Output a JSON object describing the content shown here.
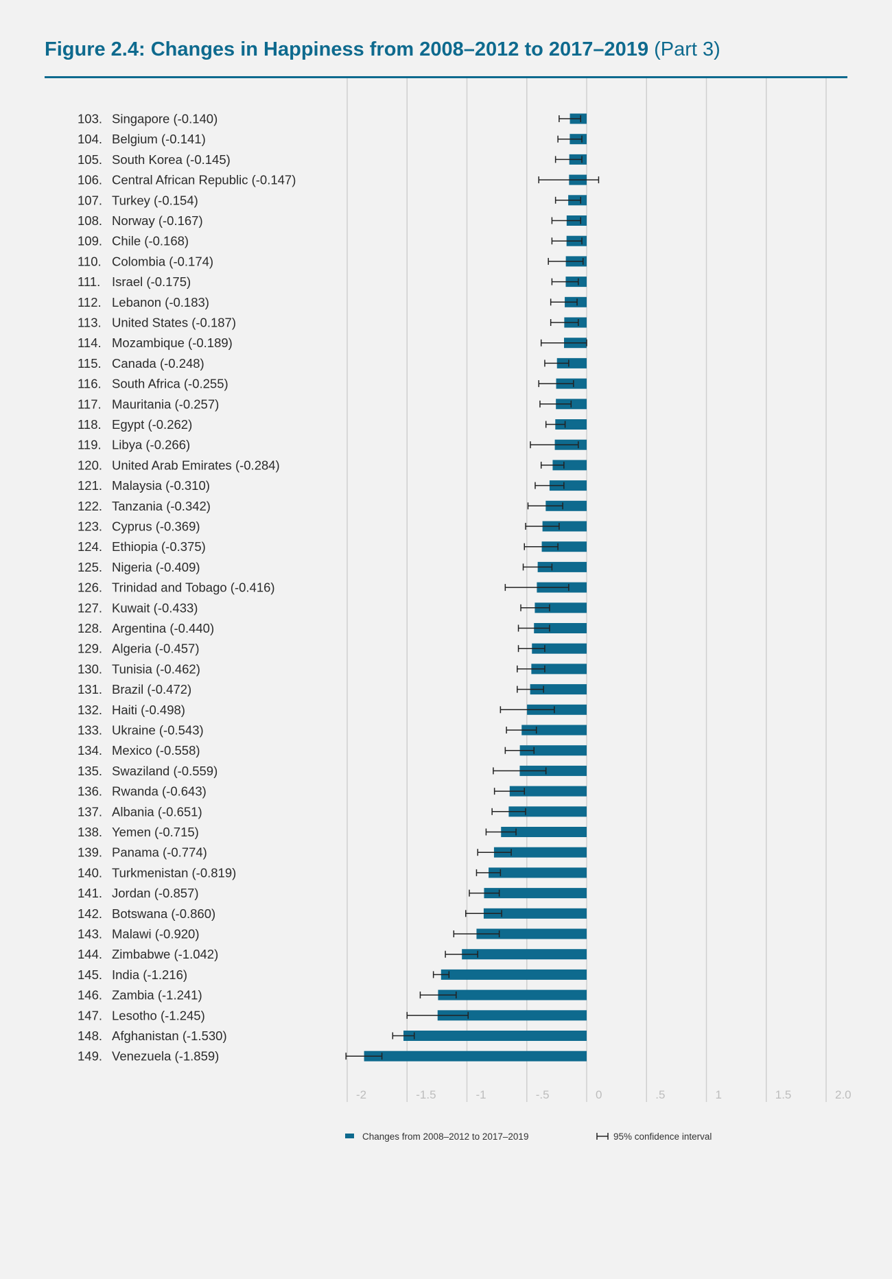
{
  "title": {
    "main": "Figure 2.4: Changes in Happiness from 2008–2012 to 2017–2019",
    "part": "(Part 3)"
  },
  "colors": {
    "accent": "#0e6a8e",
    "bar": "#0e6a8e",
    "grid": "#cfcfcf",
    "error": "#222222"
  },
  "chart_data": {
    "type": "bar",
    "orientation": "horizontal",
    "title": "Figure 2.4: Changes in Happiness from 2008–2012 to 2017–2019 (Part 3)",
    "xlabel": "",
    "ylabel": "",
    "xlim": [
      -2,
      2
    ],
    "grid": true,
    "x_ticks": [
      {
        "v": -2,
        "label": "-2"
      },
      {
        "v": -1.5,
        "label": "-1.5"
      },
      {
        "v": -1,
        "label": "-1"
      },
      {
        "v": -0.5,
        "label": "-.5"
      },
      {
        "v": 0,
        "label": "0"
      },
      {
        "v": 0.5,
        "label": ".5"
      },
      {
        "v": 1,
        "label": "1"
      },
      {
        "v": 1.5,
        "label": "1.5"
      },
      {
        "v": 2,
        "label": "2.0"
      }
    ],
    "legend": {
      "position": "bottom",
      "bar_label": "Changes from 2008–2012 to 2017–2019",
      "ci_label": "95% confidence interval"
    },
    "rows": [
      {
        "rank": "103.",
        "label": "Singapore (-0.140)",
        "value": -0.14,
        "ci": [
          -0.23,
          -0.05
        ]
      },
      {
        "rank": "104.",
        "label": "Belgium (-0.141)",
        "value": -0.141,
        "ci": [
          -0.24,
          -0.04
        ]
      },
      {
        "rank": "105.",
        "label": "South Korea (-0.145)",
        "value": -0.145,
        "ci": [
          -0.26,
          -0.04
        ]
      },
      {
        "rank": "106.",
        "label": "Central African Republic (-0.147)",
        "value": -0.147,
        "ci": [
          -0.4,
          0.1
        ]
      },
      {
        "rank": "107.",
        "label": "Turkey (-0.154)",
        "value": -0.154,
        "ci": [
          -0.26,
          -0.05
        ]
      },
      {
        "rank": "108.",
        "label": "Norway (-0.167)",
        "value": -0.167,
        "ci": [
          -0.29,
          -0.05
        ]
      },
      {
        "rank": "109.",
        "label": "Chile (-0.168)",
        "value": -0.168,
        "ci": [
          -0.29,
          -0.04
        ]
      },
      {
        "rank": "110.",
        "label": "Colombia (-0.174)",
        "value": -0.174,
        "ci": [
          -0.32,
          -0.03
        ]
      },
      {
        "rank": "111.",
        "label": "Israel (-0.175)",
        "value": -0.175,
        "ci": [
          -0.29,
          -0.07
        ]
      },
      {
        "rank": "112.",
        "label": "Lebanon (-0.183)",
        "value": -0.183,
        "ci": [
          -0.3,
          -0.08
        ]
      },
      {
        "rank": "113.",
        "label": "United States (-0.187)",
        "value": -0.187,
        "ci": [
          -0.3,
          -0.07
        ]
      },
      {
        "rank": "114.",
        "label": "Mozambique (-0.189)",
        "value": -0.189,
        "ci": [
          -0.38,
          0.0
        ]
      },
      {
        "rank": "115.",
        "label": "Canada (-0.248)",
        "value": -0.248,
        "ci": [
          -0.35,
          -0.15
        ]
      },
      {
        "rank": "116.",
        "label": "South Africa (-0.255)",
        "value": -0.255,
        "ci": [
          -0.4,
          -0.11
        ]
      },
      {
        "rank": "117.",
        "label": "Mauritania (-0.257)",
        "value": -0.257,
        "ci": [
          -0.39,
          -0.13
        ]
      },
      {
        "rank": "118.",
        "label": "Egypt (-0.262)",
        "value": -0.262,
        "ci": [
          -0.34,
          -0.18
        ]
      },
      {
        "rank": "119.",
        "label": "Libya (-0.266)",
        "value": -0.266,
        "ci": [
          -0.47,
          -0.07
        ]
      },
      {
        "rank": "120.",
        "label": "United Arab Emirates (-0.284)",
        "value": -0.284,
        "ci": [
          -0.38,
          -0.19
        ]
      },
      {
        "rank": "121.",
        "label": "Malaysia (-0.310)",
        "value": -0.31,
        "ci": [
          -0.43,
          -0.19
        ]
      },
      {
        "rank": "122.",
        "label": "Tanzania (-0.342)",
        "value": -0.342,
        "ci": [
          -0.49,
          -0.2
        ]
      },
      {
        "rank": "123.",
        "label": "Cyprus (-0.369)",
        "value": -0.369,
        "ci": [
          -0.51,
          -0.23
        ]
      },
      {
        "rank": "124.",
        "label": "Ethiopia (-0.375)",
        "value": -0.375,
        "ci": [
          -0.52,
          -0.24
        ]
      },
      {
        "rank": "125.",
        "label": "Nigeria (-0.409)",
        "value": -0.409,
        "ci": [
          -0.53,
          -0.29
        ]
      },
      {
        "rank": "126.",
        "label": "Trinidad and Tobago (-0.416)",
        "value": -0.416,
        "ci": [
          -0.68,
          -0.15
        ]
      },
      {
        "rank": "127.",
        "label": "Kuwait (-0.433)",
        "value": -0.433,
        "ci": [
          -0.55,
          -0.31
        ]
      },
      {
        "rank": "128.",
        "label": "Argentina (-0.440)",
        "value": -0.44,
        "ci": [
          -0.57,
          -0.31
        ]
      },
      {
        "rank": "129.",
        "label": "Algeria (-0.457)",
        "value": -0.457,
        "ci": [
          -0.57,
          -0.35
        ]
      },
      {
        "rank": "130.",
        "label": "Tunisia (-0.462)",
        "value": -0.462,
        "ci": [
          -0.58,
          -0.35
        ]
      },
      {
        "rank": "131.",
        "label": "Brazil (-0.472)",
        "value": -0.472,
        "ci": [
          -0.58,
          -0.36
        ]
      },
      {
        "rank": "132.",
        "label": "Haiti (-0.498)",
        "value": -0.498,
        "ci": [
          -0.72,
          -0.27
        ]
      },
      {
        "rank": "133.",
        "label": "Ukraine (-0.543)",
        "value": -0.543,
        "ci": [
          -0.67,
          -0.42
        ]
      },
      {
        "rank": "134.",
        "label": "Mexico (-0.558)",
        "value": -0.558,
        "ci": [
          -0.68,
          -0.44
        ]
      },
      {
        "rank": "135.",
        "label": "Swaziland (-0.559)",
        "value": -0.559,
        "ci": [
          -0.78,
          -0.34
        ]
      },
      {
        "rank": "136.",
        "label": "Rwanda (-0.643)",
        "value": -0.643,
        "ci": [
          -0.77,
          -0.52
        ]
      },
      {
        "rank": "137.",
        "label": "Albania (-0.651)",
        "value": -0.651,
        "ci": [
          -0.79,
          -0.51
        ]
      },
      {
        "rank": "138.",
        "label": "Yemen (-0.715)",
        "value": -0.715,
        "ci": [
          -0.84,
          -0.59
        ]
      },
      {
        "rank": "139.",
        "label": "Panama (-0.774)",
        "value": -0.774,
        "ci": [
          -0.91,
          -0.63
        ]
      },
      {
        "rank": "140.",
        "label": "Turkmenistan (-0.819)",
        "value": -0.819,
        "ci": [
          -0.92,
          -0.72
        ]
      },
      {
        "rank": "141.",
        "label": "Jordan (-0.857)",
        "value": -0.857,
        "ci": [
          -0.98,
          -0.73
        ]
      },
      {
        "rank": "142.",
        "label": "Botswana (-0.860)",
        "value": -0.86,
        "ci": [
          -1.01,
          -0.71
        ]
      },
      {
        "rank": "143.",
        "label": "Malawi (-0.920)",
        "value": -0.92,
        "ci": [
          -1.11,
          -0.73
        ]
      },
      {
        "rank": "144.",
        "label": "Zimbabwe (-1.042)",
        "value": -1.042,
        "ci": [
          -1.18,
          -0.91
        ]
      },
      {
        "rank": "145.",
        "label": "India (-1.216)",
        "value": -1.216,
        "ci": [
          -1.28,
          -1.15
        ]
      },
      {
        "rank": "146.",
        "label": "Zambia (-1.241)",
        "value": -1.241,
        "ci": [
          -1.39,
          -1.09
        ]
      },
      {
        "rank": "147.",
        "label": "Lesotho (-1.245)",
        "value": -1.245,
        "ci": [
          -1.5,
          -0.99
        ]
      },
      {
        "rank": "148.",
        "label": "Afghanistan (-1.530)",
        "value": -1.53,
        "ci": [
          -1.62,
          -1.44
        ]
      },
      {
        "rank": "149.",
        "label": "Venezuela (-1.859)",
        "value": -1.859,
        "ci": [
          -2.01,
          -1.71
        ]
      }
    ]
  }
}
